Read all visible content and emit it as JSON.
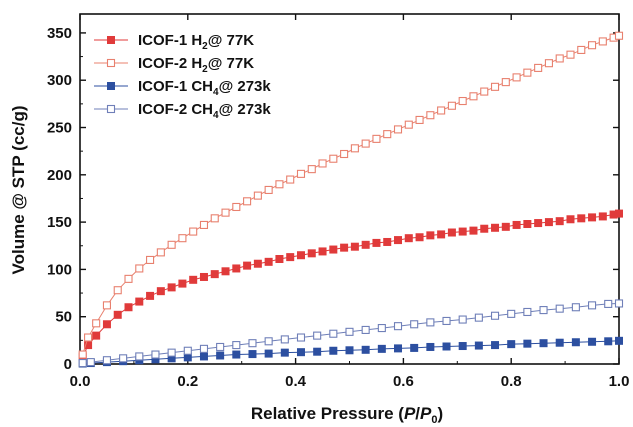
{
  "chart_data": {
    "type": "scatter",
    "xlabel": "Relative Pressure (P/P0)",
    "ylabel": "Volume @ STP (cc/g)",
    "xlim": [
      0,
      1.0
    ],
    "ylim": [
      0,
      370
    ],
    "xticks": [
      "0.0",
      "0.2",
      "0.4",
      "0.6",
      "0.8",
      "1.0"
    ],
    "yticks": [
      "0",
      "50",
      "100",
      "150",
      "200",
      "250",
      "300",
      "350"
    ],
    "legend_position": "top-left",
    "grid": false,
    "series": [
      {
        "name": "ICOF-1 H2@ 77K",
        "color": "#e03a3a",
        "marker": "filled-square",
        "points": [
          [
            0.005,
            8
          ],
          [
            0.015,
            20
          ],
          [
            0.03,
            30
          ],
          [
            0.05,
            42
          ],
          [
            0.07,
            52
          ],
          [
            0.09,
            60
          ],
          [
            0.11,
            66
          ],
          [
            0.13,
            72
          ],
          [
            0.15,
            77
          ],
          [
            0.17,
            81
          ],
          [
            0.19,
            85
          ],
          [
            0.21,
            89
          ],
          [
            0.23,
            92
          ],
          [
            0.25,
            95
          ],
          [
            0.27,
            98
          ],
          [
            0.29,
            101
          ],
          [
            0.31,
            104
          ],
          [
            0.33,
            106
          ],
          [
            0.35,
            108
          ],
          [
            0.37,
            111
          ],
          [
            0.39,
            113
          ],
          [
            0.41,
            115
          ],
          [
            0.43,
            117
          ],
          [
            0.45,
            119
          ],
          [
            0.47,
            121
          ],
          [
            0.49,
            123
          ],
          [
            0.51,
            124
          ],
          [
            0.53,
            126
          ],
          [
            0.55,
            128
          ],
          [
            0.57,
            129
          ],
          [
            0.59,
            131
          ],
          [
            0.61,
            133
          ],
          [
            0.63,
            134
          ],
          [
            0.65,
            136
          ],
          [
            0.67,
            137
          ],
          [
            0.69,
            139
          ],
          [
            0.71,
            140
          ],
          [
            0.73,
            141
          ],
          [
            0.75,
            143
          ],
          [
            0.77,
            144
          ],
          [
            0.79,
            145
          ],
          [
            0.81,
            147
          ],
          [
            0.83,
            148
          ],
          [
            0.85,
            149
          ],
          [
            0.87,
            150
          ],
          [
            0.89,
            151
          ],
          [
            0.91,
            153
          ],
          [
            0.93,
            154
          ],
          [
            0.95,
            155
          ],
          [
            0.97,
            156
          ],
          [
            0.99,
            158
          ],
          [
            1.0,
            159
          ]
        ]
      },
      {
        "name": "ICOF-2 H2@ 77K",
        "color": "#e8806e",
        "marker": "open-square",
        "points": [
          [
            0.005,
            10
          ],
          [
            0.015,
            28
          ],
          [
            0.03,
            43
          ],
          [
            0.05,
            62
          ],
          [
            0.07,
            78
          ],
          [
            0.09,
            90
          ],
          [
            0.11,
            101
          ],
          [
            0.13,
            110
          ],
          [
            0.15,
            118
          ],
          [
            0.17,
            126
          ],
          [
            0.19,
            133
          ],
          [
            0.21,
            140
          ],
          [
            0.23,
            147
          ],
          [
            0.25,
            154
          ],
          [
            0.27,
            160
          ],
          [
            0.29,
            166
          ],
          [
            0.31,
            172
          ],
          [
            0.33,
            178
          ],
          [
            0.35,
            184
          ],
          [
            0.37,
            190
          ],
          [
            0.39,
            195
          ],
          [
            0.41,
            201
          ],
          [
            0.43,
            206
          ],
          [
            0.45,
            212
          ],
          [
            0.47,
            217
          ],
          [
            0.49,
            222
          ],
          [
            0.51,
            228
          ],
          [
            0.53,
            233
          ],
          [
            0.55,
            238
          ],
          [
            0.57,
            243
          ],
          [
            0.59,
            248
          ],
          [
            0.61,
            253
          ],
          [
            0.63,
            258
          ],
          [
            0.65,
            263
          ],
          [
            0.67,
            268
          ],
          [
            0.69,
            273
          ],
          [
            0.71,
            278
          ],
          [
            0.73,
            283
          ],
          [
            0.75,
            288
          ],
          [
            0.77,
            293
          ],
          [
            0.79,
            298
          ],
          [
            0.81,
            303
          ],
          [
            0.83,
            308
          ],
          [
            0.85,
            313
          ],
          [
            0.87,
            318
          ],
          [
            0.89,
            323
          ],
          [
            0.91,
            327
          ],
          [
            0.93,
            332
          ],
          [
            0.95,
            337
          ],
          [
            0.97,
            341
          ],
          [
            0.99,
            345
          ],
          [
            1.0,
            347
          ]
        ]
      },
      {
        "name": "ICOF-1 CH4@ 273k",
        "color": "#2c4fa0",
        "marker": "filled-square",
        "points": [
          [
            0.005,
            0.5
          ],
          [
            0.02,
            1
          ],
          [
            0.05,
            2
          ],
          [
            0.08,
            3
          ],
          [
            0.11,
            4
          ],
          [
            0.14,
            5
          ],
          [
            0.17,
            6
          ],
          [
            0.2,
            7
          ],
          [
            0.23,
            8
          ],
          [
            0.26,
            9
          ],
          [
            0.29,
            10
          ],
          [
            0.32,
            10.5
          ],
          [
            0.35,
            11
          ],
          [
            0.38,
            12
          ],
          [
            0.41,
            12.5
          ],
          [
            0.44,
            13
          ],
          [
            0.47,
            14
          ],
          [
            0.5,
            14.5
          ],
          [
            0.53,
            15
          ],
          [
            0.56,
            16
          ],
          [
            0.59,
            16.5
          ],
          [
            0.62,
            17
          ],
          [
            0.65,
            18
          ],
          [
            0.68,
            18.5
          ],
          [
            0.71,
            19
          ],
          [
            0.74,
            19.5
          ],
          [
            0.77,
            20
          ],
          [
            0.8,
            21
          ],
          [
            0.83,
            21.5
          ],
          [
            0.86,
            22
          ],
          [
            0.89,
            22.5
          ],
          [
            0.92,
            23
          ],
          [
            0.95,
            23.5
          ],
          [
            0.98,
            24
          ],
          [
            1.0,
            24.5
          ]
        ]
      },
      {
        "name": "ICOF-2 CH4@ 273k",
        "color": "#6f7fb8",
        "marker": "open-square",
        "points": [
          [
            0.005,
            1
          ],
          [
            0.02,
            2
          ],
          [
            0.05,
            4
          ],
          [
            0.08,
            6
          ],
          [
            0.11,
            8
          ],
          [
            0.14,
            10
          ],
          [
            0.17,
            12
          ],
          [
            0.2,
            14
          ],
          [
            0.23,
            16
          ],
          [
            0.26,
            18
          ],
          [
            0.29,
            20
          ],
          [
            0.32,
            22
          ],
          [
            0.35,
            24
          ],
          [
            0.38,
            26
          ],
          [
            0.41,
            28
          ],
          [
            0.44,
            30
          ],
          [
            0.47,
            32
          ],
          [
            0.5,
            34
          ],
          [
            0.53,
            36
          ],
          [
            0.56,
            38
          ],
          [
            0.59,
            40
          ],
          [
            0.62,
            42
          ],
          [
            0.65,
            44
          ],
          [
            0.68,
            45.5
          ],
          [
            0.71,
            47
          ],
          [
            0.74,
            49
          ],
          [
            0.77,
            51
          ],
          [
            0.8,
            53
          ],
          [
            0.83,
            55
          ],
          [
            0.86,
            57
          ],
          [
            0.89,
            58.5
          ],
          [
            0.92,
            60
          ],
          [
            0.95,
            62
          ],
          [
            0.98,
            63.5
          ],
          [
            1.0,
            64
          ]
        ]
      }
    ]
  }
}
